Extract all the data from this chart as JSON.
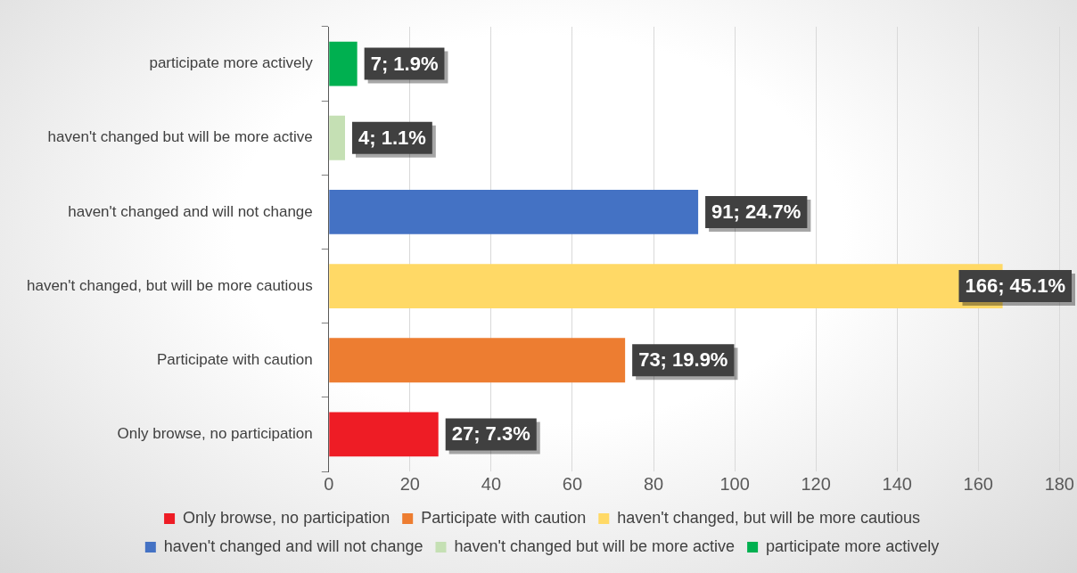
{
  "chart_data": {
    "type": "bar",
    "orientation": "horizontal",
    "stacked": true,
    "categories": [
      "participate more actively",
      "haven't changed but will be more active",
      "haven't changed and will not change",
      "haven't changed, but will be more cautious",
      "Participate with caution",
      "Only browse, no participation"
    ],
    "series": [
      {
        "name": "Only browse, no participation",
        "color": "#ee1c25",
        "values": [
          null,
          null,
          null,
          null,
          null,
          27
        ],
        "value_labels": [
          null,
          null,
          null,
          null,
          null,
          "27; 7.3%"
        ]
      },
      {
        "name": "Participate with caution",
        "color": "#ed7d31",
        "values": [
          null,
          null,
          null,
          null,
          73,
          null
        ],
        "value_labels": [
          null,
          null,
          null,
          null,
          "73; 19.9%",
          null
        ]
      },
      {
        "name": "haven't changed, but will be more cautious",
        "color": "#ffd966",
        "values": [
          null,
          null,
          null,
          166,
          null,
          null
        ],
        "value_labels": [
          null,
          null,
          null,
          "166; 45.1%",
          null,
          null
        ]
      },
      {
        "name": "haven't changed and will not change",
        "color": "#4472c4",
        "values": [
          null,
          null,
          91,
          null,
          null,
          null
        ],
        "value_labels": [
          null,
          null,
          "91; 24.7%",
          null,
          null,
          null
        ]
      },
      {
        "name": "haven't changed but will be more active",
        "color": "#c5e0b4",
        "values": [
          null,
          4,
          null,
          null,
          null,
          null
        ],
        "value_labels": [
          null,
          "4; 1.1%",
          null,
          null,
          null,
          null
        ]
      },
      {
        "name": "participate more actively",
        "color": "#00b050",
        "values": [
          7,
          null,
          null,
          null,
          null,
          null
        ],
        "value_labels": [
          "7; 1.9%",
          null,
          null,
          null,
          null,
          null
        ]
      }
    ],
    "xlim": [
      0,
      180
    ],
    "xticks": [
      0,
      20,
      40,
      60,
      80,
      100,
      120,
      140,
      160,
      180
    ],
    "grid": "x",
    "legend": "bottom"
  }
}
